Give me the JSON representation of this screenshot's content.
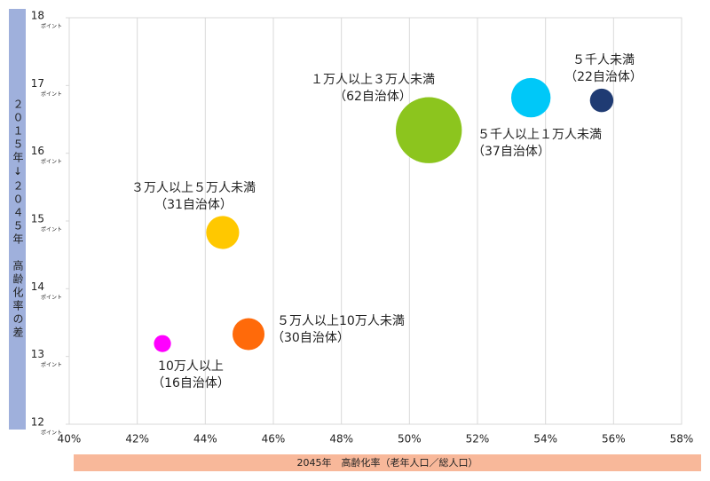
{
  "chart_data": {
    "type": "bubble",
    "y_axis_label": "２０１５年↓２０４５年　高齢化率の差",
    "x_axis_label": "2045年　高齢化率（老年人口／総人口）",
    "y_tick_unit": "ポイント",
    "xlim": [
      40,
      58
    ],
    "xticks": [
      {
        "value": 40,
        "label": "40%"
      },
      {
        "value": 42,
        "label": "42%"
      },
      {
        "value": 44,
        "label": "44%"
      },
      {
        "value": 46,
        "label": "46%"
      },
      {
        "value": 48,
        "label": "48%"
      },
      {
        "value": 50,
        "label": "50%"
      },
      {
        "value": 52,
        "label": "52%"
      },
      {
        "value": 54,
        "label": "54%"
      },
      {
        "value": 56,
        "label": "56%"
      },
      {
        "value": 58,
        "label": "58%"
      }
    ],
    "ylim": [
      12,
      18
    ],
    "yticks": [
      12,
      13,
      14,
      15,
      16,
      17,
      18
    ],
    "grid": true,
    "series": [
      {
        "name": "５千人未満",
        "color": "#1f3b73",
        "x": [
          55.65
        ],
        "values": [
          16.78
        ],
        "sizes": [
          22
        ],
        "size_labels": [
          "（22自治体）"
        ]
      },
      {
        "name": "５千人以上１万人未満",
        "color": "#00c8f8",
        "x": [
          53.57
        ],
        "values": [
          16.82
        ],
        "sizes": [
          37
        ],
        "size_labels": [
          "（37自治体）"
        ]
      },
      {
        "name": "１万人以上３万人未満",
        "color": "#8cc51e",
        "x": [
          50.57
        ],
        "values": [
          16.34
        ],
        "sizes": [
          62
        ],
        "size_labels": [
          "（62自治体）"
        ]
      },
      {
        "name": "３万人以上５万人未満",
        "color": "#ffc800",
        "x": [
          44.51
        ],
        "values": [
          14.83
        ],
        "sizes": [
          31
        ],
        "size_labels": [
          "（31自治体）"
        ]
      },
      {
        "name": "５万人以上10万人未満",
        "color": "#ff6a0a",
        "x": [
          45.27
        ],
        "values": [
          13.33
        ],
        "sizes": [
          30
        ],
        "size_labels": [
          "（30自治体）"
        ]
      },
      {
        "name": "10万人以上",
        "color": "#ff00ff",
        "x": [
          42.74
        ],
        "values": [
          13.19
        ],
        "sizes": [
          16
        ],
        "size_labels": [
          "（16自治体）"
        ]
      }
    ]
  }
}
